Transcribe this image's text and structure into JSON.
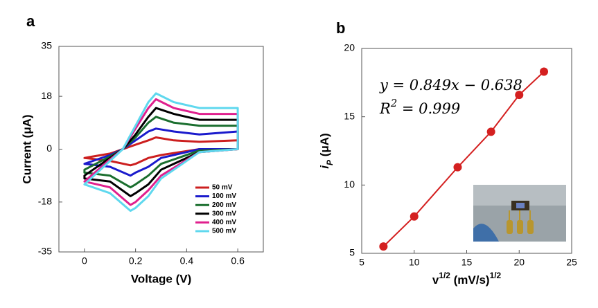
{
  "chart_data": [
    {
      "type": "line",
      "closed": true,
      "panel": "a",
      "xlabel": "Voltage (V)",
      "ylabel": "Current (μA)",
      "x": [
        0,
        0.1,
        0.15,
        0.2,
        0.25,
        0.28,
        0.35,
        0.45,
        0.6,
        0.6,
        0.45,
        0.3,
        0.25,
        0.2,
        0.18,
        0.1,
        0
      ],
      "xlim": [
        -0.1,
        0.7
      ],
      "xticks": [
        0,
        0.2,
        0.4,
        0.6
      ],
      "ylim": [
        -35,
        35
      ],
      "yticks": [
        -35,
        -18,
        0,
        18,
        35
      ],
      "legend": "lower right",
      "series": [
        {
          "name": "50 mV",
          "color": "#cc1f1f",
          "values": [
            -3,
            -1.5,
            0,
            1.5,
            3,
            4,
            3,
            2.5,
            3,
            0,
            0,
            -2,
            -3,
            -5,
            -5.5,
            -4,
            -3
          ]
        },
        {
          "name": "100 mV",
          "color": "#1a1acc",
          "values": [
            -5,
            -2,
            0,
            3,
            6,
            7,
            6,
            5,
            6,
            0,
            0,
            -3,
            -6,
            -8,
            -9,
            -6,
            -5
          ]
        },
        {
          "name": "200 mV",
          "color": "#1a6e2e",
          "values": [
            -7,
            -2.5,
            0,
            4,
            9,
            11,
            9,
            8,
            8,
            0,
            -0.5,
            -5,
            -9,
            -12,
            -13,
            -9,
            -8
          ]
        },
        {
          "name": "300 mV",
          "color": "#000000",
          "values": [
            -9,
            -3,
            0,
            5,
            11,
            14,
            12,
            10,
            10,
            0,
            -1,
            -7,
            -12,
            -15,
            -16,
            -11,
            -10
          ]
        },
        {
          "name": "400 mV",
          "color": "#e0208e",
          "values": [
            -11,
            -3.5,
            0,
            7,
            14,
            17,
            14,
            12,
            12,
            0,
            -1,
            -9,
            -14,
            -18,
            -19,
            -13,
            -11
          ]
        },
        {
          "name": "500 mV",
          "color": "#5fd8ee",
          "values": [
            -12,
            -4,
            0,
            8,
            16,
            19,
            16,
            14,
            14,
            0,
            -1,
            -10,
            -16,
            -20,
            -21,
            -15,
            -12
          ]
        }
      ]
    },
    {
      "type": "line",
      "markers": true,
      "panel": "b",
      "xlabel": [
        {
          "text": "v"
        },
        {
          "text": "1/2",
          "sup": true
        },
        {
          "text": " (mV/s)"
        },
        {
          "text": "1/2",
          "sup": true
        }
      ],
      "ylabel": [
        {
          "text": "i",
          "italic": true
        },
        {
          "text": "P",
          "sub": true,
          "italic": true
        },
        {
          "text": " (μA)"
        }
      ],
      "annotations": [
        [
          {
            "text": "y = 0.849x − 0.638"
          }
        ],
        [
          {
            "text": "R"
          },
          {
            "text": "2",
            "sup": true
          },
          {
            "text": " = 0.999"
          }
        ]
      ],
      "x": [
        7.07,
        10,
        14.14,
        17.32,
        20,
        22.36
      ],
      "xlim": [
        5,
        25
      ],
      "xticks": [
        5,
        10,
        15,
        20,
        25
      ],
      "ylim": [
        5,
        20
      ],
      "yticks": [
        5,
        10,
        15,
        20
      ],
      "series": [
        {
          "color": "#d42020",
          "values": [
            5.5,
            7.7,
            11.3,
            13.9,
            16.6,
            18.3
          ]
        }
      ]
    }
  ]
}
